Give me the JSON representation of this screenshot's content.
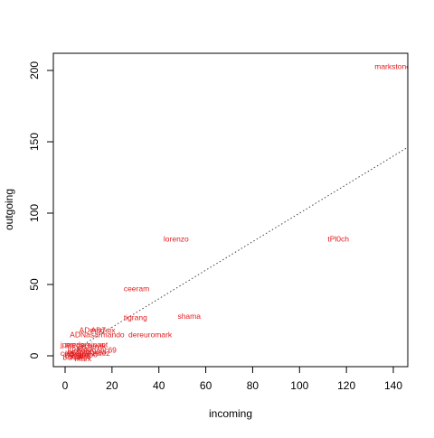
{
  "chart_data": {
    "type": "scatter",
    "title": "",
    "xlabel": "incoming",
    "ylabel": "outgoing",
    "xlim": [
      -5,
      146
    ],
    "ylim": [
      -8,
      210
    ],
    "x_ticks": [
      0,
      20,
      40,
      60,
      80,
      100,
      120,
      140
    ],
    "y_ticks": [
      0,
      50,
      100,
      150,
      200
    ],
    "grid": false,
    "label_color": "#e41a1c",
    "reference_line": {
      "style": "dotted",
      "color": "#444444",
      "from": [
        0,
        0
      ],
      "slope": 1.0
    },
    "points": [
      {
        "label": "markstoneman",
        "x": 132,
        "y": 203
      },
      {
        "label": "tPl0ch",
        "x": 112,
        "y": 82
      },
      {
        "label": "lorenzo",
        "x": 42,
        "y": 82
      },
      {
        "label": "ceeram",
        "x": 25,
        "y": 47
      },
      {
        "label": "shama",
        "x": 48,
        "y": 28
      },
      {
        "label": "tigrang",
        "x": 25,
        "y": 27
      },
      {
        "label": "dereuromark",
        "x": 27,
        "y": 15
      },
      {
        "label": "AD7six",
        "x": 11,
        "y": 18
      },
      {
        "label": "ADmad",
        "x": 6,
        "y": 18
      },
      {
        "label": "ADNasarmando",
        "x": 2,
        "y": 15
      },
      {
        "label": "dogmatic69",
        "x": 5,
        "y": 4
      },
      {
        "label": "jperras",
        "x": -2,
        "y": 8
      },
      {
        "label": "predominant",
        "x": 0,
        "y": 8
      },
      {
        "label": "rchavik",
        "x": 7,
        "y": 7
      },
      {
        "label": "jrbasso",
        "x": 1,
        "y": 5
      },
      {
        "label": "josegonzalez",
        "x": 0,
        "y": 2
      },
      {
        "label": "kiang",
        "x": 3,
        "y": 1
      },
      {
        "label": "renan",
        "x": 0,
        "y": 0
      },
      {
        "label": "bcrowe",
        "x": -1,
        "y": -1
      },
      {
        "label": "jippi",
        "x": 2,
        "y": 0
      },
      {
        "label": "ceeram2",
        "x": -2,
        "y": 2
      },
      {
        "label": "mark",
        "x": 4,
        "y": -2
      },
      {
        "label": "neilcrookes",
        "x": 1,
        "y": 3
      },
      {
        "label": "gwoo",
        "x": 6,
        "y": 1
      }
    ]
  }
}
